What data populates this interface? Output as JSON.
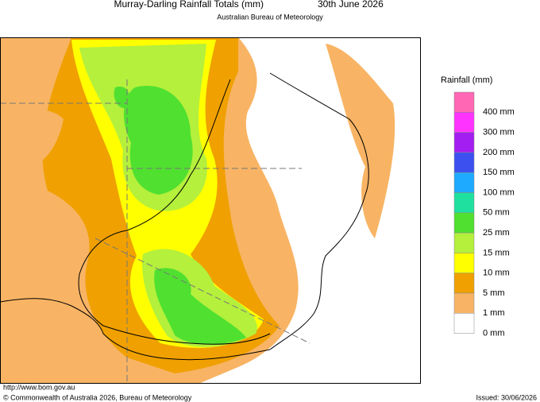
{
  "header": {
    "title": "Murray-Darling Rainfall Totals (mm)",
    "date": "30th June 2026",
    "subtitle": "Australian Bureau of Meteorology"
  },
  "legend": {
    "title": "Rainfall (mm)",
    "items": [
      {
        "label": "400 mm",
        "color": "#ff66b3"
      },
      {
        "label": "300 mm",
        "color": "#ff33ff"
      },
      {
        "label": "200 mm",
        "color": "#a31ef0"
      },
      {
        "label": "150 mm",
        "color": "#3c50f0"
      },
      {
        "label": "100 mm",
        "color": "#1eaaff"
      },
      {
        "label": "50 mm",
        "color": "#20e0a0"
      },
      {
        "label": "25 mm",
        "color": "#50e030"
      },
      {
        "label": "15 mm",
        "color": "#b4f03c"
      },
      {
        "label": "10 mm",
        "color": "#ffff00"
      },
      {
        "label": "5 mm",
        "color": "#f0a000"
      },
      {
        "label": "1 mm",
        "color": "#f8b464"
      },
      {
        "label": "0 mm",
        "color": "#ffffff"
      }
    ]
  },
  "footer": {
    "url": "http://www.bom.gov.au",
    "copyright": "© Commonwealth of Australia 2026, Bureau of Meteorology",
    "issued": "Issued: 30/06/2026"
  }
}
